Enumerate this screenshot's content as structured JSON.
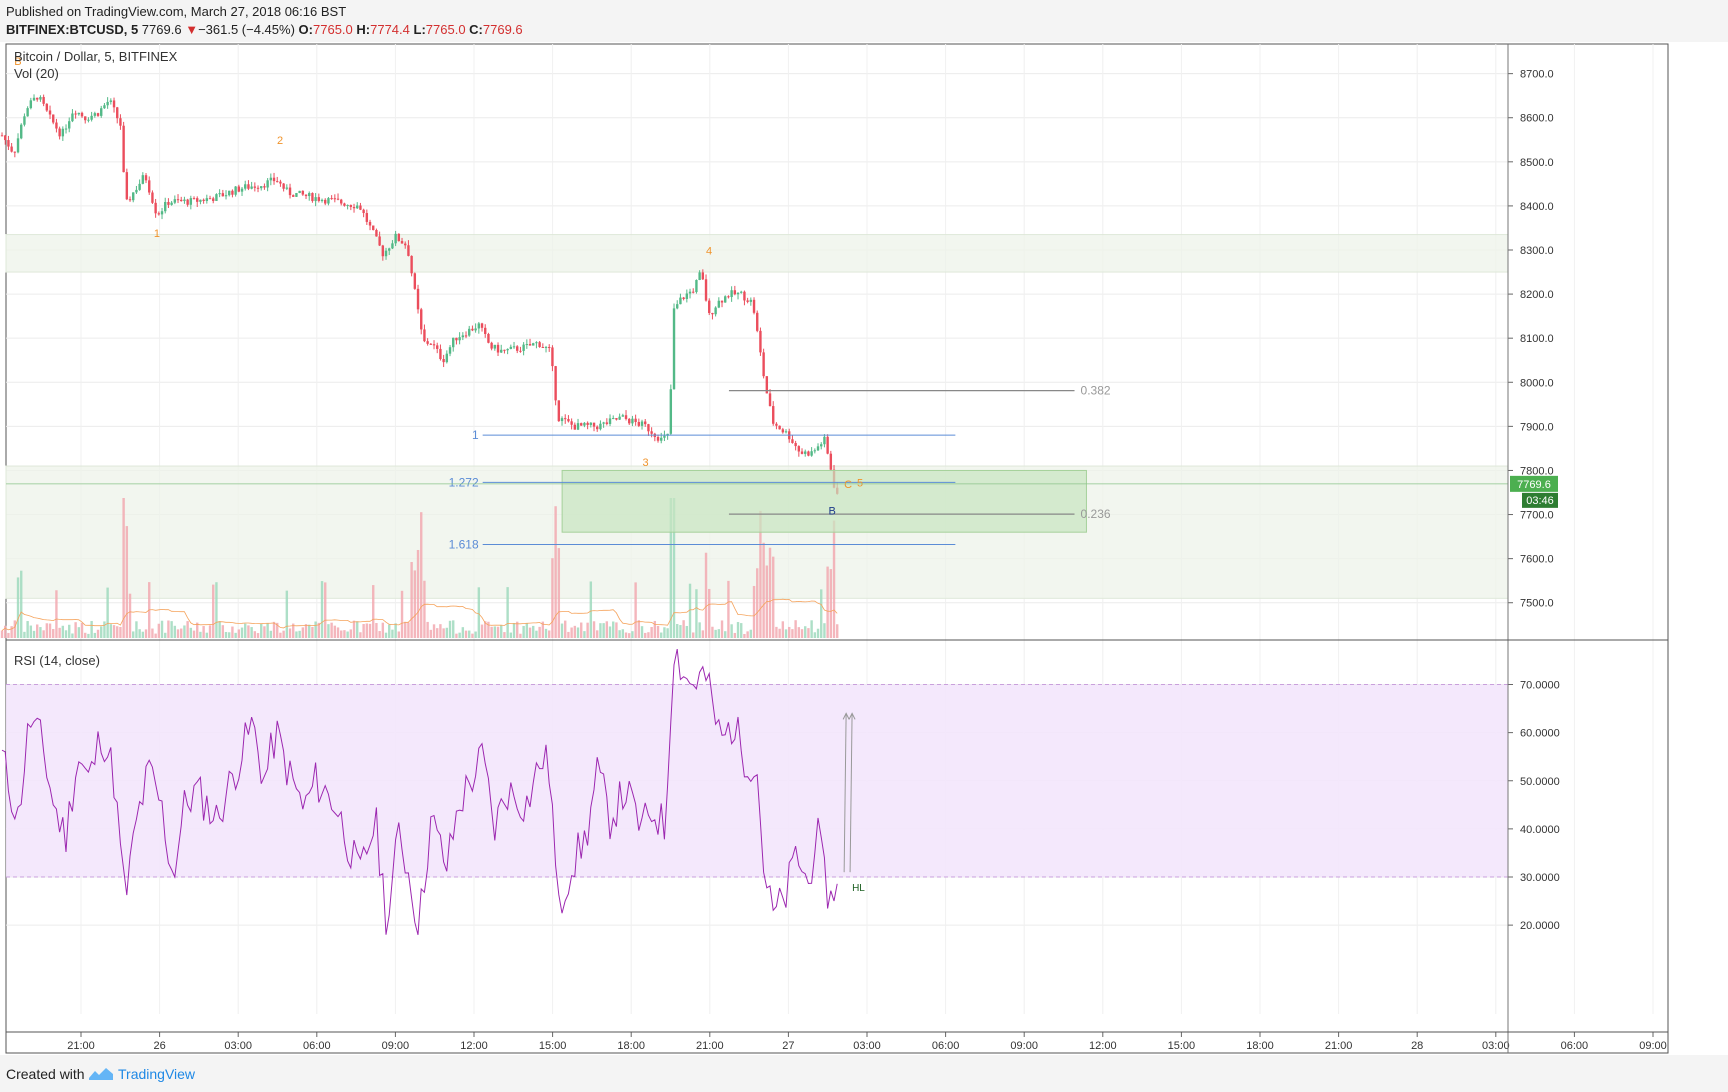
{
  "header": {
    "published": "Published on TradingView.com, March 27, 2018 06:16 BST",
    "symbol": "BITFINEX:BTCUSD, 5",
    "last": "7769.6",
    "change_arrow": "▼",
    "change": "−361.5 (−4.45%)",
    "o_label": "O:",
    "o": "7765.0",
    "h_label": "H:",
    "h": "7774.4",
    "l_label": "L:",
    "l": "7765.0",
    "c_label": "C:",
    "c": "7769.6"
  },
  "footer": {
    "created": "Created with",
    "brand": "TradingView",
    "logo_icon": "tradingview-logo-icon"
  },
  "colors": {
    "up": "#53b987",
    "down": "#eb4d5c",
    "rsi": "#9c27b0",
    "fib": "#5b8cd6",
    "wave": "#f0932b",
    "zone": "#c8e6c0",
    "last_price": "#4caf50"
  },
  "chart_data": [
    {
      "type": "candlestick",
      "title": "Bitcoin / Dollar, 5, BITFINEX",
      "volume_label": "Vol (20)",
      "y_ticks": [
        "8700.0",
        "8600.0",
        "8500.0",
        "8400.0",
        "8300.0",
        "8200.0",
        "8100.0",
        "8000.0",
        "7900.0",
        "7800.0",
        "7700.0",
        "7600.0",
        "7500.0"
      ],
      "ylim": [
        7420,
        8740
      ],
      "x_ticks": [
        "21:00",
        "26",
        "03:00",
        "06:00",
        "09:00",
        "12:00",
        "15:00",
        "18:00",
        "21:00",
        "27",
        "03:00",
        "06:00",
        "09:00",
        "12:00",
        "15:00",
        "18:00",
        "21:00",
        "28",
        "03:00",
        "06:00",
        "09:00"
      ],
      "last_price_label": "7769.6",
      "countdown_label": "03:46",
      "price_path": [
        [
          "2018-03-25 19:00",
          8560
        ],
        [
          "2018-03-25 19:30",
          8520
        ],
        [
          "2018-03-25 20:00",
          8620
        ],
        [
          "2018-03-25 20:30",
          8650
        ],
        [
          "2018-03-25 21:00",
          8600
        ],
        [
          "2018-03-25 21:30",
          8560
        ],
        [
          "2018-03-25 22:00",
          8620
        ],
        [
          "2018-03-25 22:30",
          8600
        ],
        [
          "2018-03-25 23:00",
          8610
        ],
        [
          "2018-03-25 23:30",
          8640
        ],
        [
          "2018-03-26 00:00",
          8580
        ],
        [
          "2018-03-26 00:10",
          8400
        ],
        [
          "2018-03-26 00:30",
          8430
        ],
        [
          "2018-03-26 01:00",
          8470
        ],
        [
          "2018-03-26 01:30",
          8380
        ],
        [
          "2018-03-26 02:00",
          8410
        ],
        [
          "2018-03-26 03:00",
          8410
        ],
        [
          "2018-03-26 04:00",
          8420
        ],
        [
          "2018-03-26 05:00",
          8440
        ],
        [
          "2018-03-26 06:00",
          8450
        ],
        [
          "2018-03-26 06:30",
          8460
        ],
        [
          "2018-03-26 07:00",
          8430
        ],
        [
          "2018-03-26 08:00",
          8420
        ],
        [
          "2018-03-26 09:00",
          8410
        ],
        [
          "2018-03-26 10:00",
          8400
        ],
        [
          "2018-03-26 11:00",
          8290
        ],
        [
          "2018-03-26 11:30",
          8330
        ],
        [
          "2018-03-26 12:00",
          8310
        ],
        [
          "2018-03-26 12:20",
          8200
        ],
        [
          "2018-03-26 12:40",
          8090
        ],
        [
          "2018-03-26 13:00",
          8090
        ],
        [
          "2018-03-26 13:30",
          8050
        ],
        [
          "2018-03-26 14:00",
          8100
        ],
        [
          "2018-03-26 15:00",
          8130
        ],
        [
          "2018-03-26 15:30",
          8080
        ],
        [
          "2018-03-26 16:00",
          8070
        ],
        [
          "2018-03-26 17:00",
          8080
        ],
        [
          "2018-03-26 17:30",
          8090
        ],
        [
          "2018-03-26 18:00",
          8070
        ],
        [
          "2018-03-26 18:20",
          7920
        ],
        [
          "2018-03-26 19:00",
          7900
        ],
        [
          "2018-03-26 20:00",
          7900
        ],
        [
          "2018-03-26 21:00",
          7920
        ],
        [
          "2018-03-26 22:00",
          7900
        ],
        [
          "2018-03-26 22:40",
          7870
        ],
        [
          "2018-03-26 23:00",
          7880
        ],
        [
          "2018-03-26 23:10",
          8160
        ],
        [
          "2018-03-26 23:30",
          8190
        ],
        [
          "2018-03-27 00:00",
          8210
        ],
        [
          "2018-03-27 00:20",
          8250
        ],
        [
          "2018-03-27 00:40",
          8150
        ],
        [
          "2018-03-27 01:00",
          8180
        ],
        [
          "2018-03-27 01:30",
          8200
        ],
        [
          "2018-03-27 02:00",
          8200
        ],
        [
          "2018-03-27 02:30",
          8180
        ],
        [
          "2018-03-27 03:00",
          8000
        ],
        [
          "2018-03-27 03:20",
          7910
        ],
        [
          "2018-03-27 04:00",
          7880
        ],
        [
          "2018-03-27 04:30",
          7840
        ],
        [
          "2018-03-27 05:00",
          7840
        ],
        [
          "2018-03-27 05:30",
          7870
        ],
        [
          "2018-03-27 05:50",
          7790
        ],
        [
          "2018-03-27 06:00",
          7740
        ],
        [
          "2018-03-27 06:10",
          7770
        ]
      ],
      "volume_note": "volume bars coloured by candle direction with 20-period moving average",
      "fib_extension": [
        {
          "level": "1",
          "price": 7880
        },
        {
          "level": "1.272",
          "price": 7773
        },
        {
          "level": "1.618",
          "price": 7632
        }
      ],
      "fib_retracement": [
        {
          "level": "0.382",
          "price": 7981
        },
        {
          "level": "0.236",
          "price": 7701
        }
      ],
      "wave_labels": [
        {
          "text": "B",
          "time": "2018-03-25 19:40",
          "price": 8720
        },
        {
          "text": "1",
          "time": "2018-03-26 01:30",
          "price": 8330
        },
        {
          "text": "2",
          "time": "2018-03-26 06:40",
          "price": 8540
        },
        {
          "text": "3",
          "time": "2018-03-26 22:00",
          "price": 7810
        },
        {
          "text": "4",
          "time": "2018-03-27 00:40",
          "price": 8290
        },
        {
          "text": "B",
          "time": "2018-03-27 05:50",
          "price": 7700
        },
        {
          "text": "C",
          "time": "2018-03-27 06:30",
          "price": 7760
        },
        {
          "text": "5",
          "time": "2018-03-27 07:00",
          "price": 7764
        }
      ],
      "target_zone": {
        "from_time": "2018-03-26 18:30",
        "to_time": "2018-03-27 16:30",
        "top": 7800,
        "bottom": 7660
      },
      "support_bands": [
        {
          "top": 8335,
          "bottom": 8250
        },
        {
          "top": 7810,
          "bottom": 7510
        }
      ]
    },
    {
      "type": "line",
      "title": "RSI (14, close)",
      "y_ticks": [
        "70.0000",
        "60.0000",
        "50.0000",
        "40.0000",
        "30.0000",
        "20.0000"
      ],
      "ylim": [
        14,
        78
      ],
      "overbought": 70,
      "oversold": 30,
      "annotation": "HL",
      "rsi_path": [
        [
          "2018-03-25 19:00",
          55
        ],
        [
          "2018-03-25 19:40",
          42
        ],
        [
          "2018-03-25 20:10",
          63
        ],
        [
          "2018-03-25 20:40",
          58
        ],
        [
          "2018-03-25 21:10",
          45
        ],
        [
          "2018-03-25 21:40",
          38
        ],
        [
          "2018-03-25 22:10",
          55
        ],
        [
          "2018-03-25 22:40",
          50
        ],
        [
          "2018-03-25 23:10",
          60
        ],
        [
          "2018-03-25 23:40",
          52
        ],
        [
          "2018-03-26 00:10",
          25
        ],
        [
          "2018-03-26 00:40",
          42
        ],
        [
          "2018-03-26 01:10",
          52
        ],
        [
          "2018-03-26 01:40",
          45
        ],
        [
          "2018-03-26 02:10",
          30
        ],
        [
          "2018-03-26 02:40",
          45
        ],
        [
          "2018-03-26 03:10",
          48
        ],
        [
          "2018-03-26 04:00",
          42
        ],
        [
          "2018-03-26 05:00",
          55
        ],
        [
          "2018-03-26 05:30",
          62
        ],
        [
          "2018-03-26 06:00",
          50
        ],
        [
          "2018-03-26 06:30",
          60
        ],
        [
          "2018-03-26 07:00",
          52
        ],
        [
          "2018-03-26 07:40",
          44
        ],
        [
          "2018-03-26 08:10",
          50
        ],
        [
          "2018-03-26 09:00",
          45
        ],
        [
          "2018-03-26 10:00",
          30
        ],
        [
          "2018-03-26 10:40",
          42
        ],
        [
          "2018-03-26 11:10",
          20
        ],
        [
          "2018-03-26 11:40",
          40
        ],
        [
          "2018-03-26 12:10",
          28
        ],
        [
          "2018-03-26 12:30",
          20
        ],
        [
          "2018-03-26 13:00",
          42
        ],
        [
          "2018-03-26 13:40",
          32
        ],
        [
          "2018-03-26 14:10",
          45
        ],
        [
          "2018-03-26 14:40",
          50
        ],
        [
          "2018-03-26 15:10",
          55
        ],
        [
          "2018-03-26 15:40",
          40
        ],
        [
          "2018-03-26 16:10",
          48
        ],
        [
          "2018-03-26 17:00",
          45
        ],
        [
          "2018-03-26 17:40",
          55
        ],
        [
          "2018-03-26 18:00",
          52
        ],
        [
          "2018-03-26 18:20",
          22
        ],
        [
          "2018-03-26 18:50",
          32
        ],
        [
          "2018-03-26 19:30",
          38
        ],
        [
          "2018-03-26 20:00",
          52
        ],
        [
          "2018-03-26 20:30",
          42
        ],
        [
          "2018-03-26 21:10",
          48
        ],
        [
          "2018-03-26 21:50",
          40
        ],
        [
          "2018-03-26 22:20",
          44
        ],
        [
          "2018-03-26 22:50",
          40
        ],
        [
          "2018-03-26 23:10",
          78
        ],
        [
          "2018-03-26 23:50",
          70
        ],
        [
          "2018-03-27 00:30",
          72
        ],
        [
          "2018-03-27 01:10",
          58
        ],
        [
          "2018-03-27 01:40",
          62
        ],
        [
          "2018-03-27 02:10",
          55
        ],
        [
          "2018-03-27 02:40",
          53
        ],
        [
          "2018-03-27 03:00",
          30
        ],
        [
          "2018-03-27 03:20",
          22
        ],
        [
          "2018-03-27 03:50",
          25
        ],
        [
          "2018-03-27 04:20",
          35
        ],
        [
          "2018-03-27 04:50",
          28
        ],
        [
          "2018-03-27 05:10",
          40
        ],
        [
          "2018-03-27 05:30",
          30
        ],
        [
          "2018-03-27 05:50",
          24
        ],
        [
          "2018-03-27 06:10",
          36
        ]
      ],
      "divergence_arrows": [
        {
          "from_time": "2018-03-27 06:20",
          "from": 31,
          "to_time": "2018-03-27 06:25",
          "to": 64
        },
        {
          "from_time": "2018-03-27 06:35",
          "from": 31,
          "to_time": "2018-03-27 06:40",
          "to": 64
        }
      ]
    }
  ]
}
